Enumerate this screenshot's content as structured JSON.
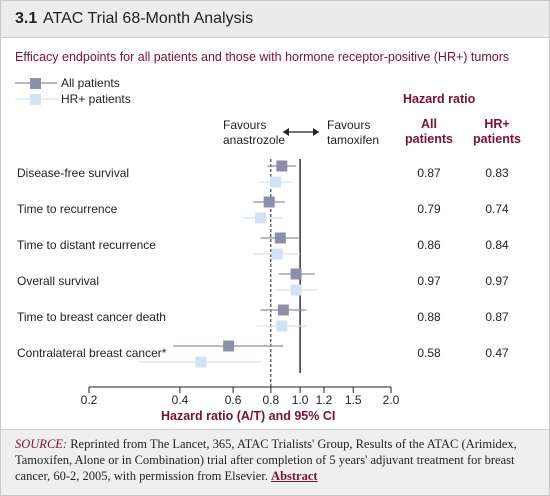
{
  "header": {
    "section_number": "3.1",
    "title": "ATAC Trial 68-Month Analysis"
  },
  "chart_data": {
    "type": "forest",
    "title": "Efficacy endpoints for all patients and those with hormone receptor-positive (HR+) tumors",
    "favours_left": "Favours anastrozole",
    "favours_right": "Favours tamoxifen",
    "value_header": "Hazard ratio",
    "column_headers": [
      "All patients",
      "HR+ patients"
    ],
    "x_label": "Hazard ratio (A/T) and 95% CI",
    "categories": [
      "Disease-free survival",
      "Time to recurrence",
      "Time to distant recurrence",
      "Overall survival",
      "Time to breast cancer death",
      "Contralateral breast cancer*"
    ],
    "series": [
      {
        "name": "All patients",
        "color": "#8b90a8",
        "values": [
          0.87,
          0.79,
          0.86,
          0.97,
          0.88,
          0.58
        ],
        "ci_low": [
          0.78,
          0.7,
          0.74,
          0.85,
          0.74,
          0.38
        ],
        "ci_high": [
          0.97,
          0.89,
          0.99,
          1.12,
          1.05,
          0.88
        ]
      },
      {
        "name": "HR+ patients",
        "color": "#d3e2f4",
        "values": [
          0.83,
          0.74,
          0.84,
          0.97,
          0.87,
          0.47
        ],
        "ci_low": [
          0.73,
          0.64,
          0.7,
          0.83,
          0.72,
          0.29
        ],
        "ci_high": [
          0.94,
          0.87,
          1.0,
          1.14,
          1.05,
          0.75
        ]
      }
    ],
    "log_x": true,
    "xlim": [
      0.2,
      2.0
    ],
    "xticks": [
      0.2,
      0.4,
      0.6,
      0.8,
      {
        "value": 1.0,
        "label": "1.0"
      },
      1.2,
      1.5,
      {
        "value": 2.0,
        "label": "2.0"
      }
    ],
    "reference_lines": [
      {
        "value": 1.0,
        "style": "solid"
      },
      {
        "value": 0.8,
        "style": "dashed"
      }
    ]
  },
  "source": {
    "label": "SOURCE:",
    "text": "Reprinted from The Lancet, 365, ATAC Trialists' Group, Results of the ATAC (Arimidex, Tamoxifen, Alone or in Combination) trial after completion of 5 years' adjuvant treatment for breast cancer, 60-2, 2005, with permission from Elsevier.",
    "link": "Abstract"
  }
}
